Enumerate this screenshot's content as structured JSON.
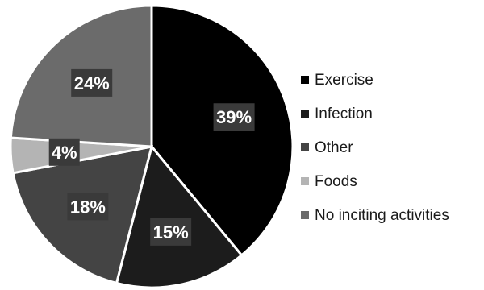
{
  "chart_data": {
    "type": "pie",
    "slices": [
      {
        "label": "Exercise",
        "value": 39,
        "display": "39%",
        "color": "#000000"
      },
      {
        "label": "Infection",
        "value": 15,
        "display": "15%",
        "color": "#1c1c1c"
      },
      {
        "label": "Other",
        "value": 18,
        "display": "18%",
        "color": "#444444"
      },
      {
        "label": "Foods",
        "value": 4,
        "display": "4%",
        "color": "#b4b4b4"
      },
      {
        "label": "No inciting activities",
        "value": 24,
        "display": "24%",
        "color": "#6b6b6b"
      }
    ],
    "legend_position": "right",
    "data_labels": "inside"
  }
}
